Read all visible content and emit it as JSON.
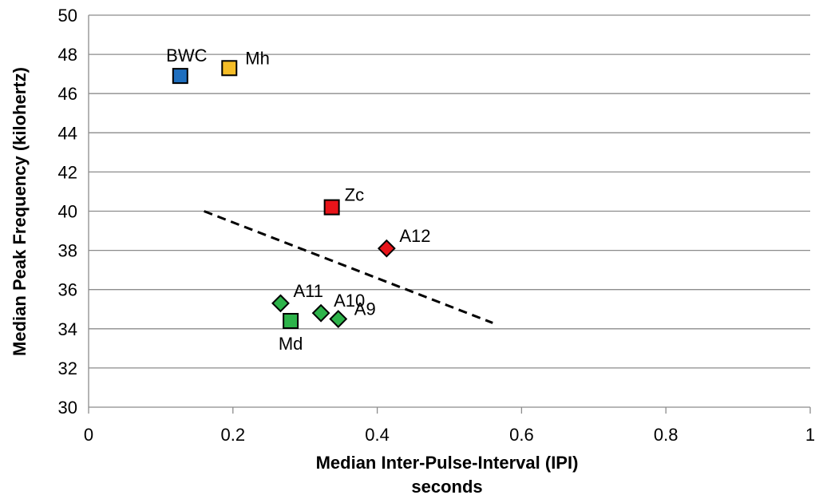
{
  "chart_data": {
    "type": "scatter",
    "xlabel": [
      "Median Inter-Pulse-Interval (IPI)",
      "seconds"
    ],
    "ylabel": "Median Peak Frequency (kilohertz)",
    "xlim": [
      0,
      1
    ],
    "ylim": [
      30,
      50
    ],
    "grid": "horizontal",
    "legend": "none",
    "x_ticks": [
      "0",
      "0.2",
      "0.4",
      "0.6",
      "0.8",
      "1"
    ],
    "y_ticks": [
      "30",
      "32",
      "34",
      "36",
      "38",
      "40",
      "42",
      "44",
      "46",
      "48",
      "50"
    ],
    "points": [
      {
        "label": "BWC",
        "x": 0.127,
        "y": 46.9,
        "shape": "square",
        "color": "#1f6fbf",
        "label_pos": "above"
      },
      {
        "label": "Mh",
        "x": 0.195,
        "y": 47.3,
        "shape": "square",
        "color": "#f5bd27",
        "label_pos": "right"
      },
      {
        "label": "Zc",
        "x": 0.337,
        "y": 40.2,
        "shape": "square",
        "color": "#e8141a",
        "label_pos": "upper-right"
      },
      {
        "label": "A12",
        "x": 0.413,
        "y": 38.1,
        "shape": "diamond",
        "color": "#e8141a",
        "label_pos": "upper-right"
      },
      {
        "label": "A11",
        "x": 0.266,
        "y": 35.3,
        "shape": "diamond",
        "color": "#2db34a",
        "label_pos": "upper-right"
      },
      {
        "label": "Md",
        "x": 0.28,
        "y": 34.4,
        "shape": "square",
        "color": "#2db34a",
        "label_pos": "below"
      },
      {
        "label": "A10",
        "x": 0.322,
        "y": 34.8,
        "shape": "diamond",
        "color": "#2db34a",
        "label_pos": "upper-right"
      },
      {
        "label": "A9",
        "x": 0.346,
        "y": 34.5,
        "shape": "diamond",
        "color": "#2db34a",
        "label_pos": "right"
      }
    ],
    "trendline": {
      "style": "dashed",
      "color": "#000000",
      "x": [
        0.16,
        0.56
      ],
      "y": [
        40.0,
        34.3
      ]
    }
  }
}
